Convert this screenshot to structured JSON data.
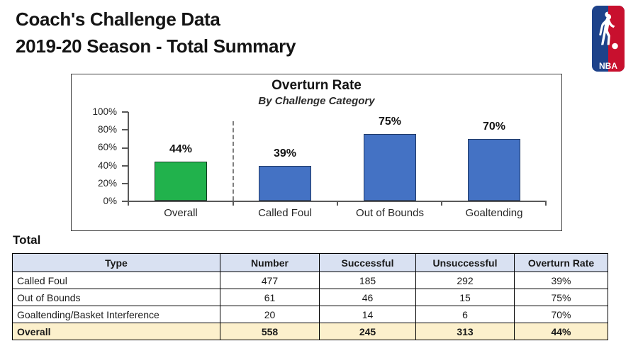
{
  "header": {
    "title_line1": "Coach's Challenge Data",
    "title_line2": "2019-20 Season - Total Summary",
    "logo_text": "NBA",
    "logo_colors": {
      "blue": "#1D428A",
      "red": "#C8102E"
    }
  },
  "chart": {
    "title": "Overturn Rate",
    "subtitle": "By Challenge Category",
    "yticks": [
      "100%",
      "80%",
      "60%",
      "40%",
      "20%",
      "0%"
    ]
  },
  "chart_data": {
    "type": "bar",
    "title": "Overturn Rate",
    "subtitle": "By Challenge Category",
    "categories": [
      "Overall",
      "Called Foul",
      "Out of Bounds",
      "Goaltending"
    ],
    "values": [
      44,
      39,
      75,
      70
    ],
    "value_labels": [
      "44%",
      "39%",
      "75%",
      "70%"
    ],
    "ylabel": "",
    "xlabel": "",
    "ylim": [
      0,
      100
    ],
    "ytick_step": 20,
    "grid": false,
    "legend": false,
    "bar_colors": [
      "#21B24C",
      "#4472C4",
      "#4472C4",
      "#4472C4"
    ],
    "bar_border_colors": [
      "#113C22",
      "#1F3864",
      "#1F3864",
      "#1F3864"
    ],
    "note": "dashed separator between Overall and the category bars"
  },
  "table": {
    "caption": "Total",
    "columns": [
      "Type",
      "Number",
      "Successful",
      "Unsuccessful",
      "Overturn Rate"
    ],
    "rows": [
      {
        "cells": [
          "Called Foul",
          "477",
          "185",
          "292",
          "39%"
        ],
        "total": false
      },
      {
        "cells": [
          "Out of Bounds",
          "61",
          "46",
          "15",
          "75%"
        ],
        "total": false
      },
      {
        "cells": [
          "Goaltending/Basket Interference",
          "20",
          "14",
          "6",
          "70%"
        ],
        "total": false
      },
      {
        "cells": [
          "Overall",
          "558",
          "245",
          "313",
          "44%"
        ],
        "total": true
      }
    ],
    "colors": {
      "header_bg": "#D9E1F2",
      "total_bg": "#FCF0CC"
    }
  }
}
